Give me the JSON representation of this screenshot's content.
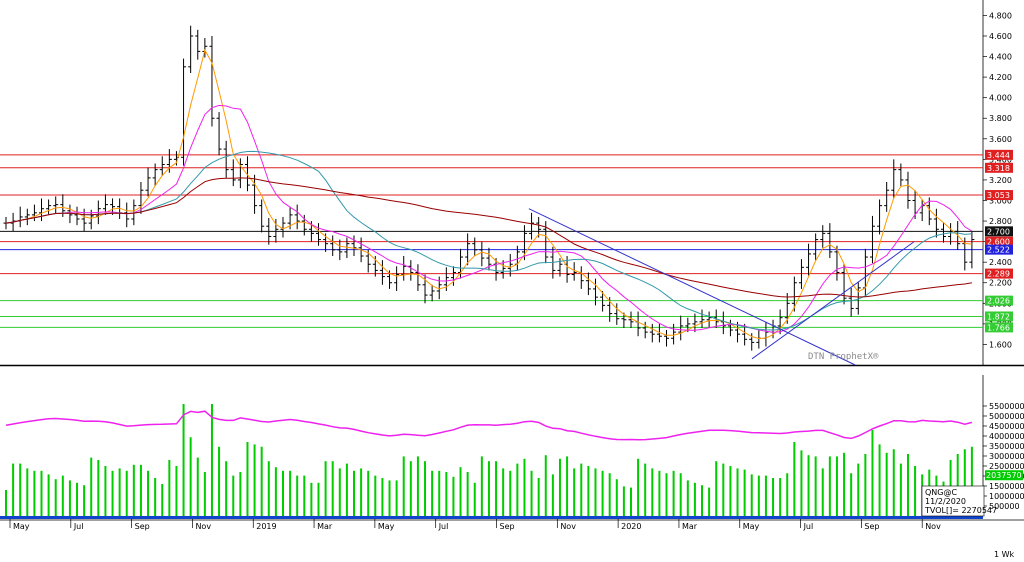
{
  "chart_data": [
    {
      "type": "ohlc",
      "panel": "price",
      "watermark": "DTN ProphetX®",
      "y_ticks": [
        "1.600",
        "1.800",
        "2.000",
        "2.200",
        "2.400",
        "2.600",
        "2.800",
        "3.000",
        "3.200",
        "3.400",
        "3.600",
        "3.800",
        "4.000",
        "4.200",
        "4.400",
        "4.600",
        "4.800"
      ],
      "ylim": [
        1.4,
        4.95
      ],
      "grid": false,
      "levels": [
        {
          "label": "3.444",
          "value": 3.444,
          "color": "#e02020"
        },
        {
          "label": "3.318",
          "value": 3.318,
          "color": "#e02020"
        },
        {
          "label": "3.053",
          "value": 3.053,
          "color": "#e02020"
        },
        {
          "label": "2.700",
          "value": 2.7,
          "color": "#111111"
        },
        {
          "label": "2.600",
          "value": 2.6,
          "color": "#e02020"
        },
        {
          "label": "2.522",
          "value": 2.522,
          "color": "#2222dd"
        },
        {
          "label": "2.289",
          "value": 2.289,
          "color": "#e02020"
        },
        {
          "label": "2.026",
          "value": 2.026,
          "color": "#33cc33"
        },
        {
          "label": "1.872",
          "value": 1.872,
          "color": "#33cc33"
        },
        {
          "label": "1.766",
          "value": 1.766,
          "color": "#33cc33"
        }
      ],
      "trendlines": [
        {
          "color": "#3333cc",
          "from": [
            0.538,
            2.92
          ],
          "to": [
            0.87,
            1.4
          ]
        },
        {
          "color": "#3333cc",
          "from": [
            0.765,
            1.46
          ],
          "to": [
            0.93,
            2.6
          ]
        }
      ],
      "moving_averages": [
        {
          "color": "#ff9900",
          "period": "short"
        },
        {
          "color": "#ee22ee",
          "period": "medium"
        },
        {
          "color": "#3399aa",
          "period": "long"
        },
        {
          "color": "#990000",
          "period": "longest"
        }
      ],
      "series": [
        {
          "name": "",
          "closes": [
            2.78,
            2.8,
            2.84,
            2.86,
            2.88,
            2.92,
            2.95,
            2.96,
            2.9,
            2.86,
            2.82,
            2.78,
            2.85,
            2.92,
            2.96,
            2.94,
            2.88,
            2.82,
            2.95,
            3.1,
            3.22,
            3.3,
            3.35,
            3.4,
            3.42,
            4.3,
            4.6,
            4.45,
            4.5,
            3.8,
            3.5,
            3.3,
            3.2,
            3.35,
            3.15,
            2.95,
            2.75,
            2.65,
            2.72,
            2.78,
            2.86,
            2.8,
            2.72,
            2.68,
            2.62,
            2.58,
            2.52,
            2.5,
            2.58,
            2.54,
            2.46,
            2.38,
            2.32,
            2.26,
            2.2,
            2.28,
            2.36,
            2.3,
            2.18,
            2.08,
            2.12,
            2.18,
            2.25,
            2.3,
            2.45,
            2.58,
            2.52,
            2.44,
            2.38,
            2.3,
            2.34,
            2.38,
            2.5,
            2.68,
            2.78,
            2.72,
            2.45,
            2.32,
            2.38,
            2.28,
            2.3,
            2.22,
            2.14,
            2.06,
            1.98,
            1.9,
            1.85,
            1.84,
            1.82,
            1.76,
            1.72,
            1.7,
            1.68,
            1.66,
            1.72,
            1.78,
            1.8,
            1.82,
            1.84,
            1.86,
            1.82,
            1.78,
            1.74,
            1.7,
            1.65,
            1.62,
            1.66,
            1.72,
            1.78,
            1.86,
            2.0,
            2.2,
            2.35,
            2.48,
            2.62,
            2.68,
            2.5,
            2.3,
            2.05,
            1.95,
            2.15,
            2.45,
            2.75,
            2.95,
            3.1,
            3.3,
            3.2,
            3.0,
            2.88,
            2.95,
            2.82,
            2.72,
            2.65,
            2.7,
            2.58,
            2.4,
            2.62
          ]
        }
      ]
    },
    {
      "type": "bar",
      "panel": "volume",
      "y_ticks": [
        "500000",
        "1000000",
        "1500000",
        "2000000",
        "2500000",
        "3000000",
        "3500000",
        "4000000",
        "4500000",
        "5000000",
        "5500000"
      ],
      "ylim": [
        0,
        5800000
      ],
      "current_value_label": "2037570",
      "line": {
        "color": "#ee22ee"
      },
      "bars_color": "#00cc00"
    }
  ],
  "x_labels": [
    "May",
    "Jul",
    "Sep",
    "Nov",
    "2019",
    "Mar",
    "May",
    "Jul",
    "Sep",
    "Nov",
    "2020",
    "Mar",
    "May",
    "Jul",
    "Sep",
    "Nov"
  ],
  "info_box": {
    "symbol": "QNG@C",
    "date": "11/2/2020",
    "tvol": "TVOL[]= 2270547"
  },
  "period_label": "1 Wk"
}
